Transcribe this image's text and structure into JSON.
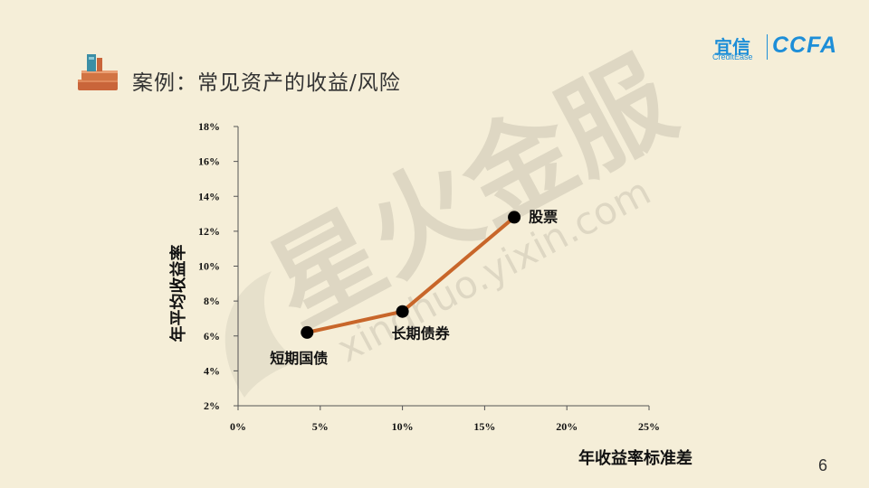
{
  "title": "案例：常见资产的收益/风险",
  "logo": {
    "cn": "宜信",
    "en": "CreditEase",
    "brand": "CCFA"
  },
  "watermark": {
    "cn": "星火金服",
    "url": "xinghuo.yixin.com"
  },
  "page_number": "6",
  "colors": {
    "background": "#f5eed8",
    "line": "#c8662a",
    "point": "#000000",
    "logo": "#1d8ed8"
  },
  "chart_data": {
    "type": "line",
    "xlabel": "年收益率标准差",
    "ylabel": "年平均收益率",
    "x_ticks": [
      "0%",
      "5%",
      "10%",
      "15%",
      "20%",
      "25%"
    ],
    "y_ticks": [
      "2%",
      "4%",
      "6%",
      "8%",
      "10%",
      "12%",
      "14%",
      "16%",
      "18%"
    ],
    "xlim": [
      0,
      25
    ],
    "ylim": [
      2,
      18
    ],
    "grid": false,
    "series": [
      {
        "points": [
          {
            "label": "短期国债",
            "x": 4.2,
            "y": 6.2
          },
          {
            "label": "长期债券",
            "x": 10.0,
            "y": 7.4
          },
          {
            "label": "股票",
            "x": 16.8,
            "y": 12.8
          }
        ]
      }
    ]
  }
}
